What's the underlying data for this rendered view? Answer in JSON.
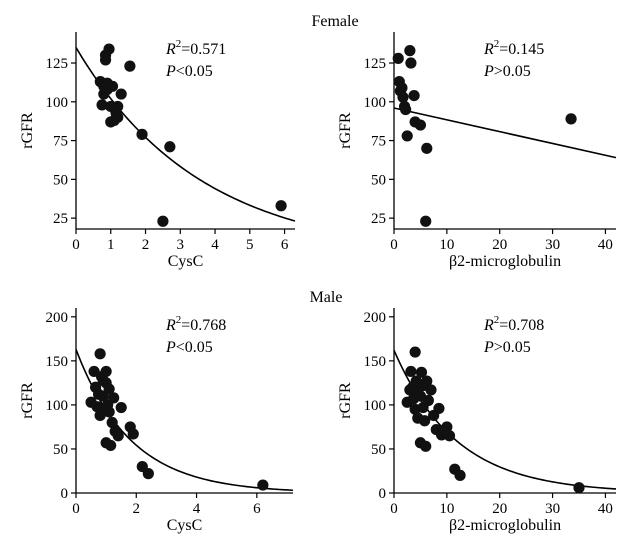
{
  "sections": {
    "female": "Female",
    "male": "Male"
  },
  "chart_data": [
    {
      "type": "scatter",
      "group": "Female",
      "xlabel": "CysC",
      "ylabel": "rGFR",
      "xlim": [
        0,
        6.3
      ],
      "ylim": [
        18,
        145
      ],
      "xticks": [
        0,
        1,
        2,
        3,
        4,
        5,
        6
      ],
      "yticks": [
        25,
        50,
        75,
        100,
        125
      ],
      "annotation": {
        "r2": "0.571",
        "p": "<0.05"
      },
      "fit": {
        "kind": "exponential",
        "a": 135,
        "b": -0.28
      },
      "points": [
        [
          0.7,
          113
        ],
        [
          0.75,
          98
        ],
        [
          0.8,
          110
        ],
        [
          0.8,
          105
        ],
        [
          0.85,
          127
        ],
        [
          0.85,
          130
        ],
        [
          0.9,
          108
        ],
        [
          0.9,
          112
        ],
        [
          0.95,
          134
        ],
        [
          1.0,
          97
        ],
        [
          1.0,
          87
        ],
        [
          1.05,
          110
        ],
        [
          1.1,
          88
        ],
        [
          1.15,
          93
        ],
        [
          1.2,
          90
        ],
        [
          1.2,
          97
        ],
        [
          1.3,
          105
        ],
        [
          1.55,
          123
        ],
        [
          1.9,
          79
        ],
        [
          2.5,
          23
        ],
        [
          2.7,
          71
        ],
        [
          5.9,
          33
        ]
      ]
    },
    {
      "type": "scatter",
      "group": "Female",
      "xlabel": "β2-microglobulin",
      "ylabel": "rGFR",
      "xlim": [
        0,
        42
      ],
      "ylim": [
        18,
        145
      ],
      "xticks": [
        0,
        10,
        20,
        30,
        40
      ],
      "yticks": [
        25,
        50,
        75,
        100,
        125
      ],
      "annotation": {
        "r2": "0.145",
        "p": ">0.05"
      },
      "fit": {
        "kind": "linear",
        "x0": 0,
        "y0": 96,
        "x1": 42,
        "y1": 64
      },
      "points": [
        [
          0.8,
          128
        ],
        [
          1.0,
          113
        ],
        [
          1.2,
          107
        ],
        [
          1.5,
          109
        ],
        [
          1.7,
          103
        ],
        [
          2.0,
          97
        ],
        [
          2.2,
          95
        ],
        [
          2.5,
          78
        ],
        [
          3.0,
          133
        ],
        [
          3.2,
          125
        ],
        [
          3.8,
          104
        ],
        [
          4.0,
          87
        ],
        [
          5.0,
          85
        ],
        [
          6.2,
          70
        ],
        [
          6.0,
          23
        ],
        [
          33.5,
          89
        ]
      ]
    },
    {
      "type": "scatter",
      "group": "Male",
      "xlabel": "CysC",
      "ylabel": "rGFR",
      "xlim": [
        0,
        7.2
      ],
      "ylim": [
        0,
        210
      ],
      "xticks": [
        0,
        2,
        4,
        6
      ],
      "yticks": [
        0,
        50,
        100,
        150,
        200
      ],
      "annotation": {
        "r2": "0.768",
        "p": "<0.05"
      },
      "fit": {
        "kind": "exponential",
        "a": 163,
        "b": -0.55
      },
      "points": [
        [
          0.5,
          103
        ],
        [
          0.6,
          138
        ],
        [
          0.65,
          120
        ],
        [
          0.7,
          98
        ],
        [
          0.75,
          112
        ],
        [
          0.8,
          88
        ],
        [
          0.8,
          158
        ],
        [
          0.85,
          132
        ],
        [
          0.9,
          128
        ],
        [
          0.9,
          110
        ],
        [
          0.95,
          93
        ],
        [
          1.0,
          125
        ],
        [
          1.0,
          138
        ],
        [
          1.0,
          57
        ],
        [
          1.05,
          100
        ],
        [
          1.1,
          118
        ],
        [
          1.1,
          92
        ],
        [
          1.15,
          54
        ],
        [
          1.2,
          80
        ],
        [
          1.25,
          108
        ],
        [
          1.3,
          70
        ],
        [
          1.4,
          65
        ],
        [
          1.5,
          97
        ],
        [
          1.8,
          75
        ],
        [
          1.9,
          67
        ],
        [
          2.2,
          30
        ],
        [
          2.4,
          22
        ],
        [
          6.2,
          9
        ]
      ]
    },
    {
      "type": "scatter",
      "group": "Male",
      "xlabel": "β2-microglobulin",
      "ylabel": "rGFR",
      "xlim": [
        0,
        42
      ],
      "ylim": [
        0,
        210
      ],
      "xticks": [
        0,
        10,
        20,
        30,
        40
      ],
      "yticks": [
        0,
        50,
        100,
        150,
        200
      ],
      "annotation": {
        "r2": "0.708",
        "p": ">0.05"
      },
      "fit": {
        "kind": "exponential",
        "a": 162,
        "b": -0.085
      },
      "points": [
        [
          2.5,
          103
        ],
        [
          3.0,
          117
        ],
        [
          3.2,
          138
        ],
        [
          3.5,
          120
        ],
        [
          3.7,
          107
        ],
        [
          4.0,
          160
        ],
        [
          4.0,
          95
        ],
        [
          4.2,
          127
        ],
        [
          4.5,
          85
        ],
        [
          4.5,
          115
        ],
        [
          5.0,
          57
        ],
        [
          5.0,
          110
        ],
        [
          5.2,
          137
        ],
        [
          5.5,
          122
        ],
        [
          5.5,
          97
        ],
        [
          5.8,
          82
        ],
        [
          6.0,
          53
        ],
        [
          6.2,
          127
        ],
        [
          6.5,
          105
        ],
        [
          7.0,
          117
        ],
        [
          7.5,
          88
        ],
        [
          8.0,
          72
        ],
        [
          8.5,
          96
        ],
        [
          9.0,
          66
        ],
        [
          10.0,
          75
        ],
        [
          10.5,
          65
        ],
        [
          11.5,
          27
        ],
        [
          12.5,
          20
        ],
        [
          35.0,
          6
        ]
      ]
    }
  ]
}
